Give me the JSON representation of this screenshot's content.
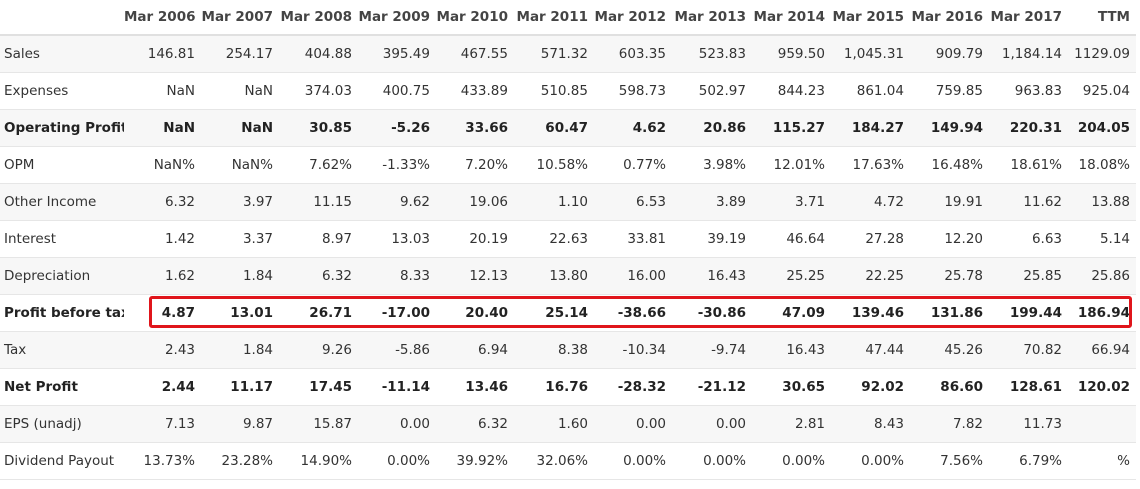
{
  "table": {
    "label_header": "",
    "headers": [
      "Mar 2006",
      "Mar 2007",
      "Mar 2008",
      "Mar 2009",
      "Mar 2010",
      "Mar 2011",
      "Mar 2012",
      "Mar 2013",
      "Mar 2014",
      "Mar 2015",
      "Mar 2016",
      "Mar 2017",
      "TTM"
    ],
    "rows": [
      {
        "label": "Sales",
        "bold": false,
        "values": [
          "146.81",
          "254.17",
          "404.88",
          "395.49",
          "467.55",
          "571.32",
          "603.35",
          "523.83",
          "959.50",
          "1,045.31",
          "909.79",
          "1,184.14",
          "1129.09"
        ]
      },
      {
        "label": "Expenses",
        "bold": false,
        "values": [
          "NaN",
          "NaN",
          "374.03",
          "400.75",
          "433.89",
          "510.85",
          "598.73",
          "502.97",
          "844.23",
          "861.04",
          "759.85",
          "963.83",
          "925.04"
        ]
      },
      {
        "label": "Operating Profit",
        "bold": true,
        "values": [
          "NaN",
          "NaN",
          "30.85",
          "-5.26",
          "33.66",
          "60.47",
          "4.62",
          "20.86",
          "115.27",
          "184.27",
          "149.94",
          "220.31",
          "204.05"
        ]
      },
      {
        "label": "OPM",
        "bold": false,
        "values": [
          "NaN%",
          "NaN%",
          "7.62%",
          "-1.33%",
          "7.20%",
          "10.58%",
          "0.77%",
          "3.98%",
          "12.01%",
          "17.63%",
          "16.48%",
          "18.61%",
          "18.08%"
        ]
      },
      {
        "label": "Other Income",
        "bold": false,
        "values": [
          "6.32",
          "3.97",
          "11.15",
          "9.62",
          "19.06",
          "1.10",
          "6.53",
          "3.89",
          "3.71",
          "4.72",
          "19.91",
          "11.62",
          "13.88"
        ]
      },
      {
        "label": "Interest",
        "bold": false,
        "values": [
          "1.42",
          "3.37",
          "8.97",
          "13.03",
          "20.19",
          "22.63",
          "33.81",
          "39.19",
          "46.64",
          "27.28",
          "12.20",
          "6.63",
          "5.14"
        ]
      },
      {
        "label": "Depreciation",
        "bold": false,
        "values": [
          "1.62",
          "1.84",
          "6.32",
          "8.33",
          "12.13",
          "13.80",
          "16.00",
          "16.43",
          "25.25",
          "22.25",
          "25.78",
          "25.85",
          "25.86"
        ]
      },
      {
        "label": "Profit before tax",
        "bold": true,
        "values": [
          "4.87",
          "13.01",
          "26.71",
          "-17.00",
          "20.40",
          "25.14",
          "-38.66",
          "-30.86",
          "47.09",
          "139.46",
          "131.86",
          "199.44",
          "186.94"
        ]
      },
      {
        "label": "Tax",
        "bold": false,
        "values": [
          "2.43",
          "1.84",
          "9.26",
          "-5.86",
          "6.94",
          "8.38",
          "-10.34",
          "-9.74",
          "16.43",
          "47.44",
          "45.26",
          "70.82",
          "66.94"
        ]
      },
      {
        "label": "Net Profit",
        "bold": true,
        "values": [
          "2.44",
          "11.17",
          "17.45",
          "-11.14",
          "13.46",
          "16.76",
          "-28.32",
          "-21.12",
          "30.65",
          "92.02",
          "86.60",
          "128.61",
          "120.02"
        ]
      },
      {
        "label": "EPS (unadj)",
        "bold": false,
        "values": [
          "7.13",
          "9.87",
          "15.87",
          "0.00",
          "6.32",
          "1.60",
          "0.00",
          "0.00",
          "2.81",
          "8.43",
          "7.82",
          "11.73",
          ""
        ]
      },
      {
        "label": "Dividend Payout",
        "bold": false,
        "values": [
          "13.73%",
          "23.28%",
          "14.90%",
          "0.00%",
          "39.92%",
          "32.06%",
          "0.00%",
          "0.00%",
          "0.00%",
          "0.00%",
          "7.56%",
          "6.79%",
          "%"
        ]
      }
    ]
  },
  "highlight": {
    "row_label": "Profit before tax",
    "color": "#e0151b"
  }
}
